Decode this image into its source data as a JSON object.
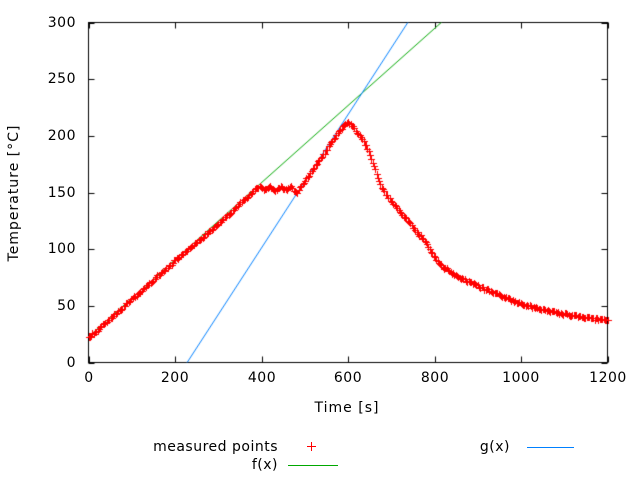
{
  "window": {
    "background": "#ffffff"
  },
  "chart_data": {
    "type": "scatter",
    "title": "",
    "xlabel": "Time [s]",
    "ylabel": "Temperature [°C]",
    "xlim": [
      0,
      1200
    ],
    "ylim": [
      0,
      300
    ],
    "xticks": [
      0,
      200,
      400,
      600,
      800,
      1000,
      1200
    ],
    "yticks": [
      0,
      50,
      100,
      150,
      200,
      250,
      300
    ],
    "grid": false,
    "tick_style": "inward-mirrored",
    "axis_color": "#000000",
    "legend_position": "below-center",
    "series": [
      {
        "name": "measured points",
        "type": "points",
        "marker": "plus",
        "color": "#ff0000",
        "sample_interval_s": 3,
        "noise_amplitude_c": 1.0,
        "anchor_points": [
          [
            0,
            22
          ],
          [
            25,
            30
          ],
          [
            50,
            39
          ],
          [
            75,
            47
          ],
          [
            100,
            56
          ],
          [
            125,
            64
          ],
          [
            150,
            73
          ],
          [
            175,
            81
          ],
          [
            200,
            90
          ],
          [
            225,
            98
          ],
          [
            250,
            106
          ],
          [
            275,
            114
          ],
          [
            300,
            123
          ],
          [
            325,
            131
          ],
          [
            350,
            140
          ],
          [
            370,
            147
          ],
          [
            388,
            154
          ],
          [
            398,
            155
          ],
          [
            407,
            151.8
          ],
          [
            419,
            155
          ],
          [
            431,
            151.8
          ],
          [
            443,
            155
          ],
          [
            455,
            151.8
          ],
          [
            467,
            154.8
          ],
          [
            477,
            151.5
          ],
          [
            483,
            150.5
          ],
          [
            500,
            160
          ],
          [
            520,
            171
          ],
          [
            540,
            182
          ],
          [
            560,
            193
          ],
          [
            580,
            204
          ],
          [
            590,
            209
          ],
          [
            597,
            212
          ],
          [
            604,
            211.5
          ],
          [
            612,
            208
          ],
          [
            620,
            204
          ],
          [
            628,
            199.5
          ],
          [
            636,
            195
          ],
          [
            642,
            191
          ],
          [
            648,
            186
          ],
          [
            654,
            180
          ],
          [
            660,
            173.5
          ],
          [
            666,
            167
          ],
          [
            672,
            160.5
          ],
          [
            678,
            154.5
          ],
          [
            688,
            148
          ],
          [
            700,
            143
          ],
          [
            712,
            137
          ],
          [
            725,
            131
          ],
          [
            740,
            124.5
          ],
          [
            755,
            117
          ],
          [
            770,
            110.5
          ],
          [
            782,
            105
          ],
          [
            790,
            100
          ],
          [
            798,
            95
          ],
          [
            806,
            90
          ],
          [
            814,
            86.5
          ],
          [
            822,
            83.5
          ],
          [
            840,
            79
          ],
          [
            860,
            75
          ],
          [
            880,
            71
          ],
          [
            900,
            67.5
          ],
          [
            925,
            63.5
          ],
          [
            950,
            59.5
          ],
          [
            975,
            55.5
          ],
          [
            1000,
            52
          ],
          [
            1030,
            48.5
          ],
          [
            1060,
            46
          ],
          [
            1090,
            43.5
          ],
          [
            1120,
            41.5
          ],
          [
            1150,
            40
          ],
          [
            1175,
            38.5
          ],
          [
            1200,
            37.5
          ]
        ]
      },
      {
        "name": "f(x)",
        "type": "line",
        "color": "#00a800",
        "slope": 0.34,
        "intercept": 22.7
      },
      {
        "name": "g(x)",
        "type": "line",
        "color": "#0080ff",
        "slope": 0.588,
        "intercept": -134.1
      }
    ]
  }
}
